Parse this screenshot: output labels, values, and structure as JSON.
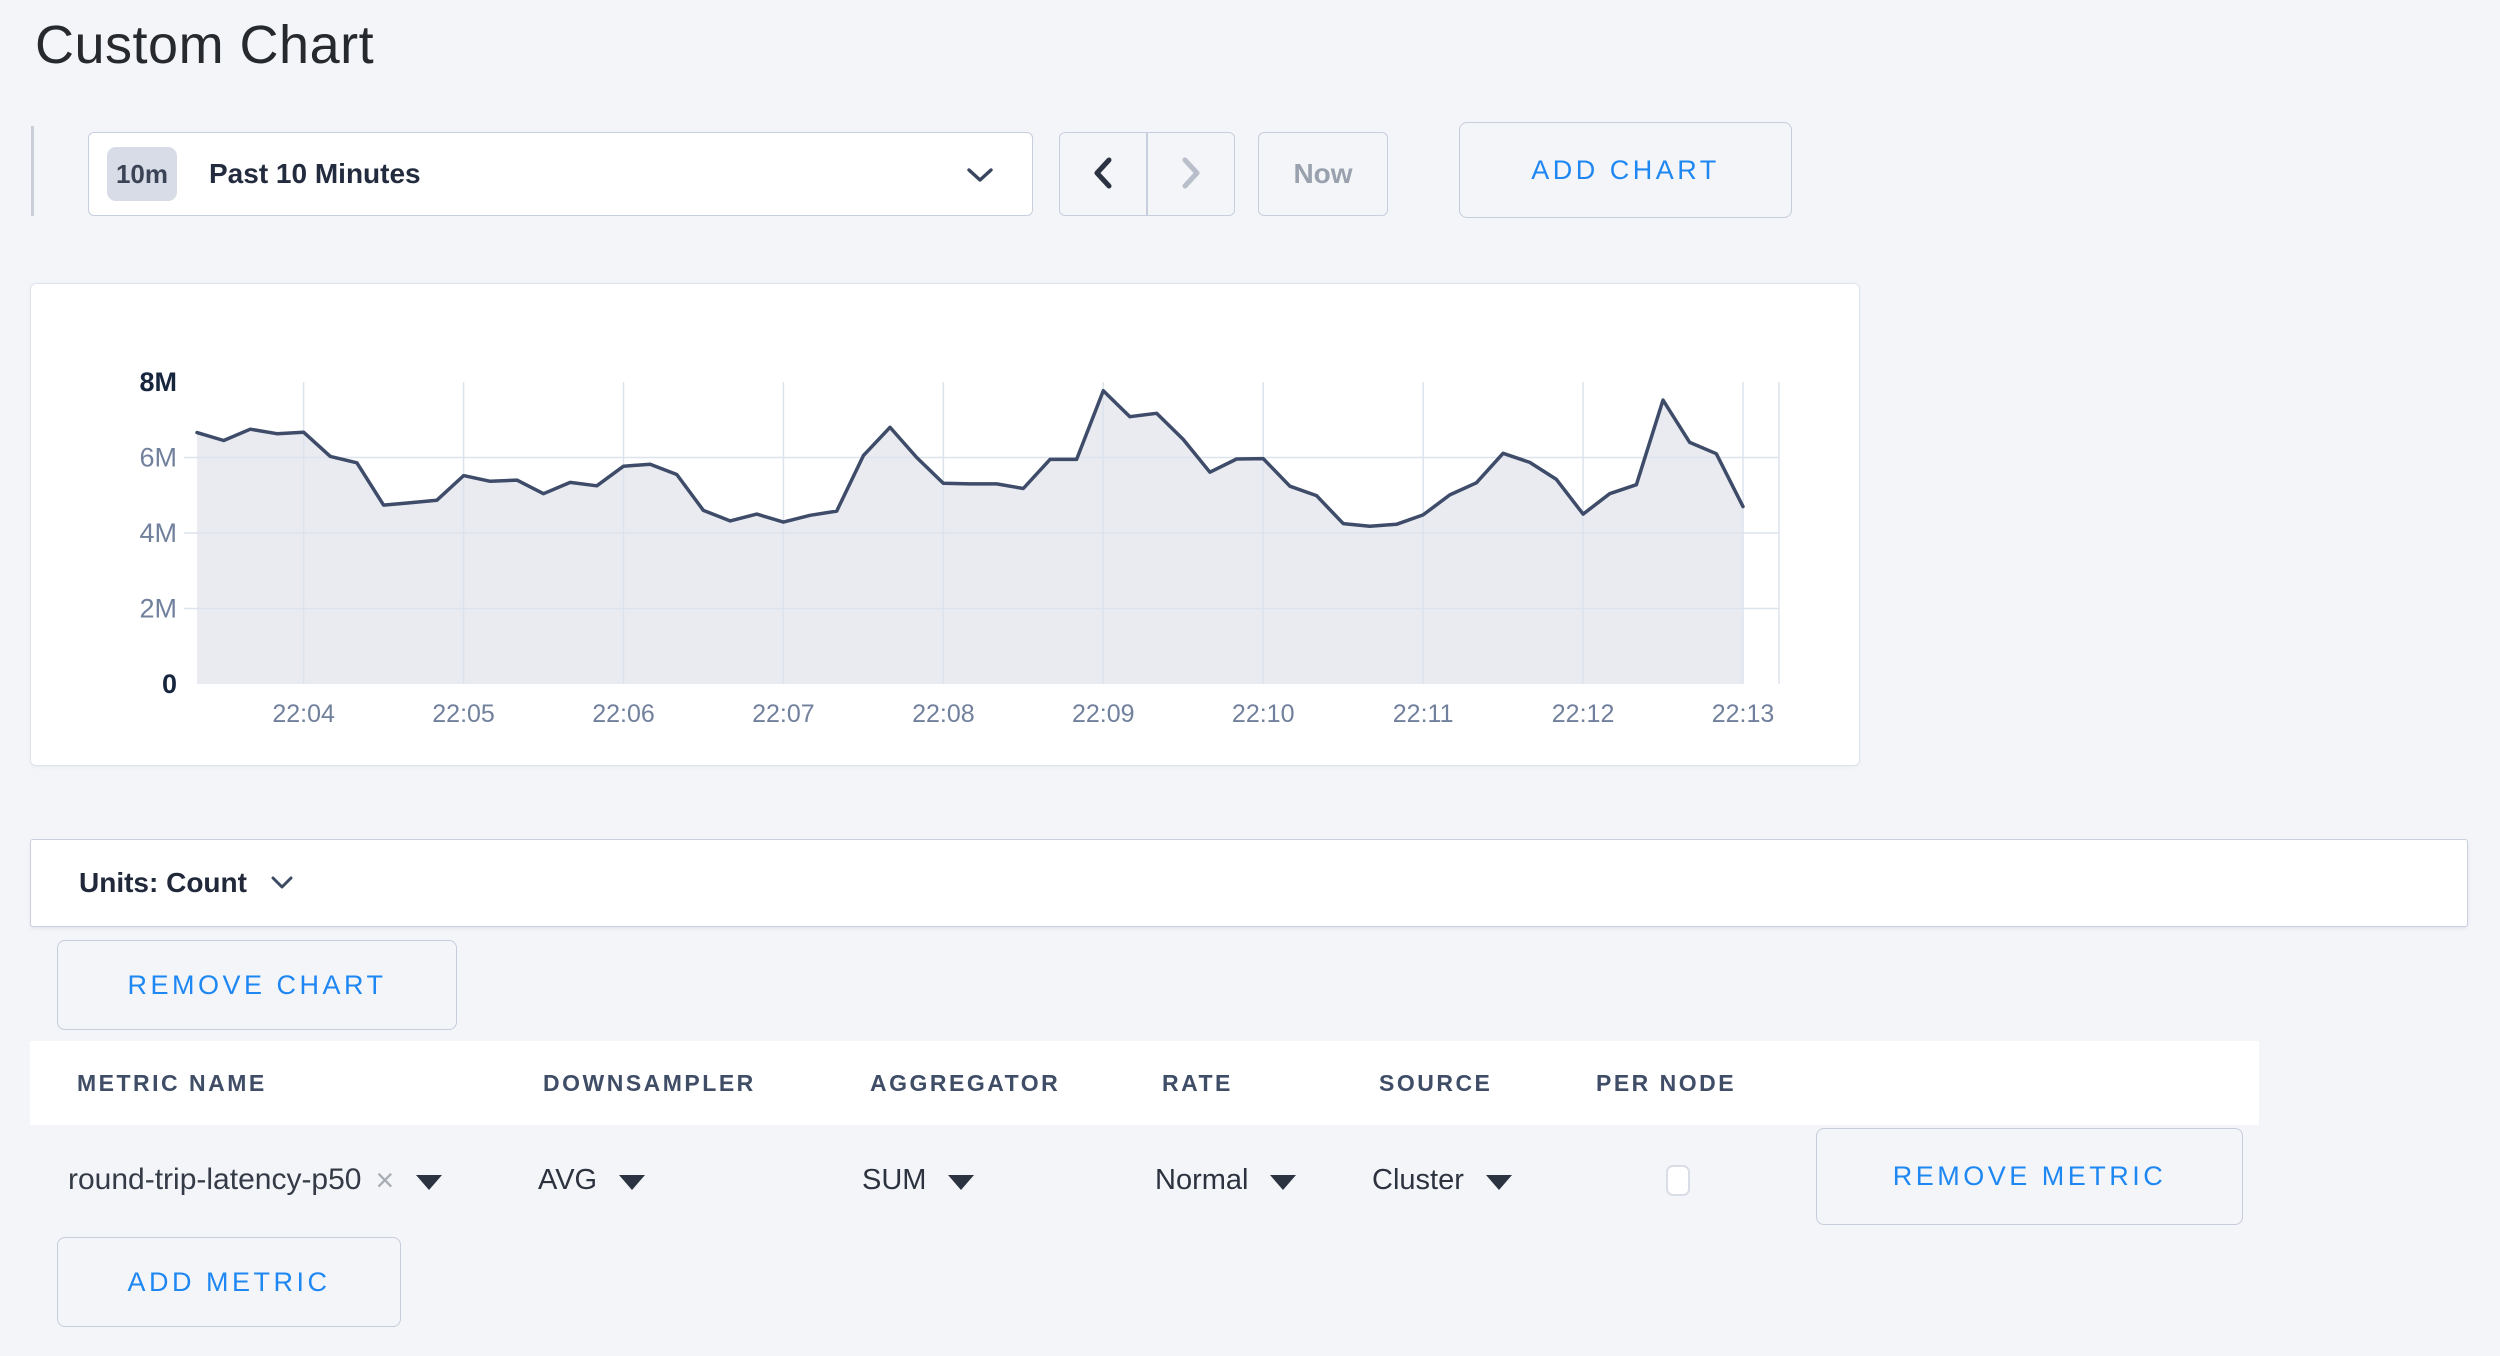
{
  "page": {
    "title": "Custom Chart",
    "accent_blue": "#1e87f2",
    "background": "#f3f5f9"
  },
  "toolbar": {
    "time_scale_badge": "10m",
    "time_range_label": "Past 10 Minutes",
    "prev_icon": "chevron-left",
    "next_icon": "chevron-right",
    "now_label": "Now",
    "add_chart_label": "ADD CHART"
  },
  "chart_data": {
    "type": "area",
    "title": "",
    "xlabel": "",
    "ylabel": "",
    "unit": "Count",
    "ylim": [
      0,
      8000000
    ],
    "grid": true,
    "legend": "none",
    "line_color": "#3e4c69",
    "fill_color": "#e9ebf1",
    "grid_color": "#dde3ed",
    "y_ticks": [
      {
        "value": 0,
        "label": "0",
        "bold": true
      },
      {
        "value": 2000000,
        "label": "2M",
        "bold": false
      },
      {
        "value": 4000000,
        "label": "4M",
        "bold": false
      },
      {
        "value": 6000000,
        "label": "6M",
        "bold": false
      },
      {
        "value": 8000000,
        "label": "8M",
        "bold": true
      }
    ],
    "x_tick_labels": [
      "22:04",
      "22:05",
      "22:06",
      "22:07",
      "22:08",
      "22:09",
      "22:10",
      "22:11",
      "22:12",
      "22:13"
    ],
    "x_tick_indices": [
      4,
      10,
      16,
      22,
      28,
      34,
      40,
      46,
      52,
      58
    ],
    "sample_interval_seconds": 10,
    "values_millions": [
      6.66,
      6.45,
      6.75,
      6.63,
      6.67,
      6.03,
      5.86,
      4.74,
      4.8,
      4.87,
      5.52,
      5.37,
      5.4,
      5.04,
      5.34,
      5.25,
      5.77,
      5.82,
      5.55,
      4.6,
      4.32,
      4.5,
      4.29,
      4.47,
      4.58,
      6.05,
      6.8,
      6.0,
      5.32,
      5.3,
      5.3,
      5.18,
      5.95,
      5.95,
      7.77,
      7.08,
      7.17,
      6.48,
      5.61,
      5.96,
      5.97,
      5.24,
      4.99,
      4.25,
      4.18,
      4.23,
      4.48,
      5.01,
      5.33,
      6.11,
      5.87,
      5.42,
      4.5,
      5.04,
      5.28,
      7.52,
      6.4,
      6.1,
      4.7
    ]
  },
  "units_bar": {
    "label": "Units: Count"
  },
  "chart_actions": {
    "remove_chart_label": "REMOVE CHART"
  },
  "metrics_table": {
    "columns": [
      "METRIC NAME",
      "DOWNSAMPLER",
      "AGGREGATOR",
      "RATE",
      "SOURCE",
      "PER NODE"
    ],
    "rows": [
      {
        "metric_name": "round-trip-latency-p50",
        "clear_icon": "×",
        "downsampler": "AVG",
        "aggregator": "SUM",
        "rate": "Normal",
        "source": "Cluster",
        "per_node_checked": false,
        "remove_label": "REMOVE METRIC"
      }
    ],
    "add_metric_label": "ADD METRIC"
  }
}
